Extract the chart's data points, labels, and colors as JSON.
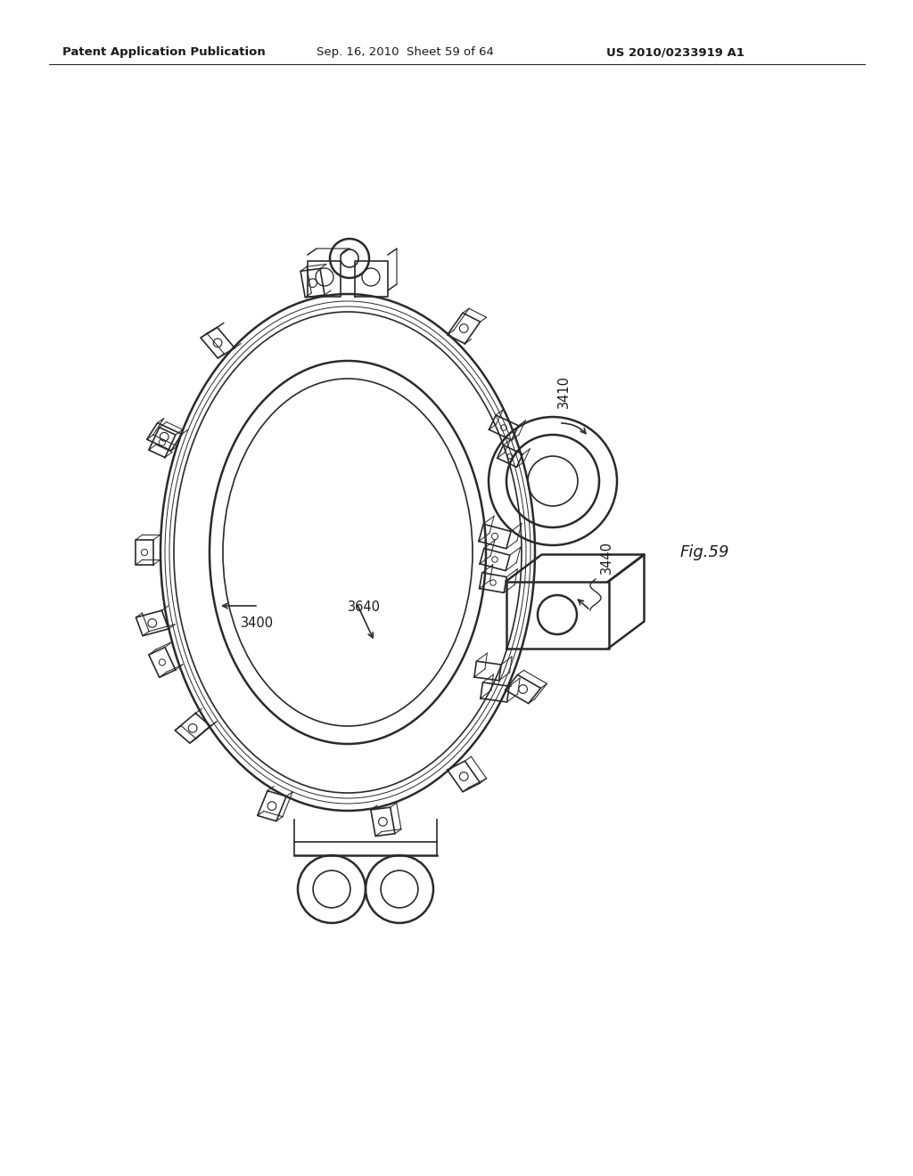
{
  "background_color": "#ffffff",
  "header_left": "Patent Application Publication",
  "header_center": "Sep. 16, 2010  Sheet 59 of 64",
  "header_right": "US 2010/0233919 A1",
  "fig_label": "Fig.59",
  "line_color": "#2a2a2a",
  "text_color": "#1a1a1a",
  "header_fontsize": 9.5,
  "label_fontsize": 10.5,
  "fig_fontsize": 13
}
